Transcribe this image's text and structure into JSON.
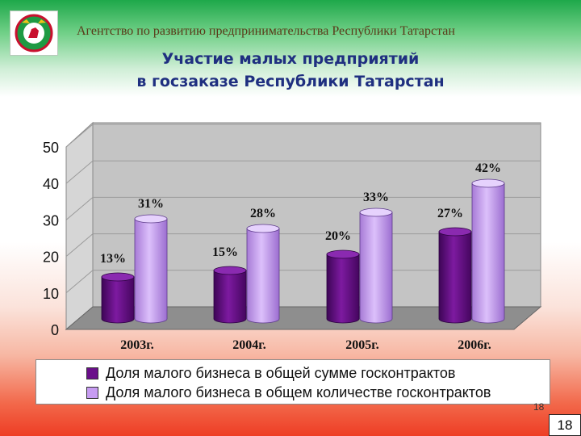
{
  "header": {
    "agency": "Агентство по развитию предпринимательства Республики Татарстан",
    "title_line1": "Участие малых предприятий",
    "title_line2": "в госзаказе Республики Татарстан"
  },
  "colors": {
    "series_dark": "#6a0f8a",
    "series_light": "#c79cf2",
    "title": "#1f2f80"
  },
  "chart_data": {
    "type": "bar",
    "categories": [
      "2003г.",
      "2004г.",
      "2005г.",
      "2006г."
    ],
    "series": [
      {
        "name": "Доля малого бизнеса в общей сумме госконтрактов",
        "values": [
          13,
          15,
          20,
          27
        ]
      },
      {
        "name": "Доля малого бизнеса в общем количестве госконтрактов",
        "values": [
          31,
          28,
          33,
          42
        ]
      }
    ],
    "data_labels": [
      [
        "13%",
        "15%",
        "20%",
        "27%"
      ],
      [
        "31%",
        "28%",
        "33%",
        "42%"
      ]
    ],
    "yticks": [
      "0",
      "10",
      "20",
      "30",
      "40",
      "50"
    ],
    "ylim": [
      0,
      50
    ],
    "grid": true,
    "legend_position": "bottom",
    "style": "3d-cylinder"
  },
  "page": {
    "number_small": "18",
    "number_box": "18"
  }
}
